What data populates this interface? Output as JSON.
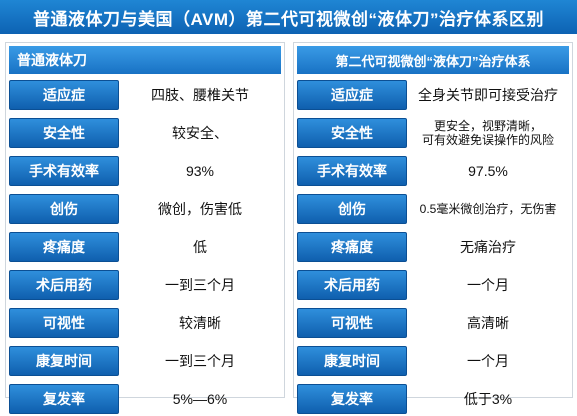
{
  "title": "普通液体刀与美国（AVM）第二代可视微创“液体刀”治疗体系区别",
  "panels": [
    {
      "header": "普通液体刀",
      "rows": [
        {
          "label": "适应症",
          "value": "四肢、腰椎关节"
        },
        {
          "label": "安全性",
          "value": "较安全、"
        },
        {
          "label": "手术有效率",
          "value": "93%"
        },
        {
          "label": "创伤",
          "value": "微创，伤害低"
        },
        {
          "label": "疼痛度",
          "value": "低"
        },
        {
          "label": "术后用药",
          "value": "一到三个月"
        },
        {
          "label": "可视性",
          "value": "较清晰"
        },
        {
          "label": "康复时间",
          "value": "一到三个月"
        },
        {
          "label": "复发率",
          "value": "5%—6%"
        }
      ]
    },
    {
      "header": "第二代可视微创“液体刀”治疗体系",
      "rows": [
        {
          "label": "适应症",
          "value": "全身关节即可接受治疗"
        },
        {
          "label": "安全性",
          "value": "更安全，视野清晰，",
          "value2": "可有效避免误操作的风险"
        },
        {
          "label": "手术有效率",
          "value": "97.5%"
        },
        {
          "label": "创伤",
          "value": "0.5毫米微创治疗，无伤害"
        },
        {
          "label": "疼痛度",
          "value": "无痛治疗"
        },
        {
          "label": "术后用药",
          "value": "一个月"
        },
        {
          "label": "可视性",
          "value": "高清晰"
        },
        {
          "label": "康复时间",
          "value": "一个月"
        },
        {
          "label": "复发率",
          "value": "低于3%"
        }
      ]
    }
  ]
}
